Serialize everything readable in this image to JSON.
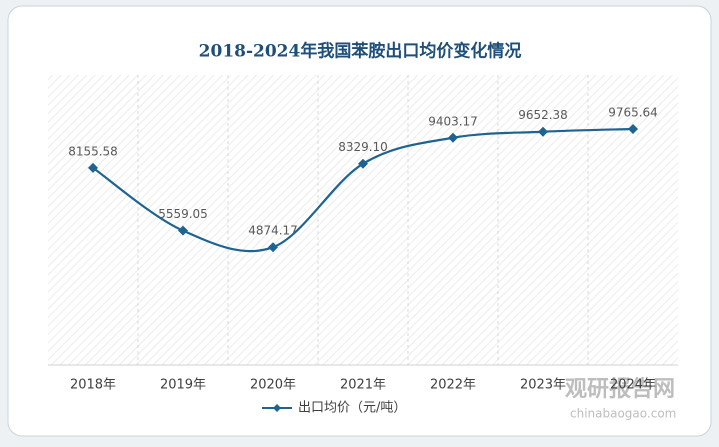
{
  "chart_data": {
    "type": "line",
    "title": "2018-2024年我国苯胺出口均价变化情况",
    "categories": [
      "2018年",
      "2019年",
      "2020年",
      "2021年",
      "2022年",
      "2023年",
      "2024年"
    ],
    "series": [
      {
        "name": "出口均价（元/吨）",
        "color": "#1f6391",
        "values": [
          8155.58,
          5559.05,
          4874.17,
          8329.1,
          9403.17,
          9652.38,
          9765.64
        ],
        "value_labels": [
          "8155.58",
          "5559.05",
          "4874.17",
          "8329.10",
          "9403.17",
          "9652.38",
          "9765.64"
        ]
      }
    ],
    "ylim": [
      0,
      12000
    ],
    "legend": "bottom",
    "smooth": true,
    "watermark": {
      "name": "观研报告网",
      "url": "chinabaogao.com"
    }
  }
}
